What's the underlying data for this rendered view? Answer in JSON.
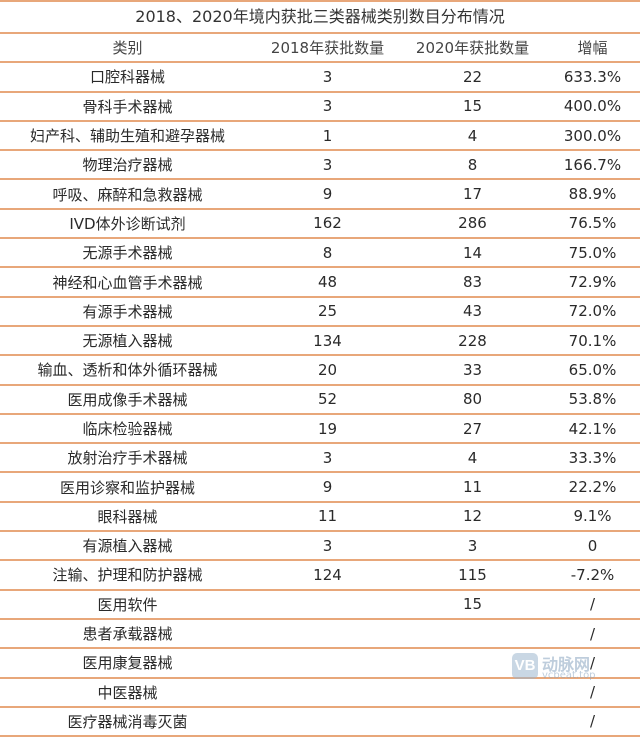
{
  "table": {
    "title": "2018、2020年境内获批三类器械类别数目分布情况",
    "headers": [
      "类别",
      "2018年获批数量",
      "2020年获批数量",
      "增幅"
    ],
    "rows": [
      [
        "口腔科器械",
        "3",
        "22",
        "633.3%"
      ],
      [
        "骨科手术器械",
        "3",
        "15",
        "400.0%"
      ],
      [
        "妇产科、辅助生殖和避孕器械",
        "1",
        "4",
        "300.0%"
      ],
      [
        "物理治疗器械",
        "3",
        "8",
        "166.7%"
      ],
      [
        "呼吸、麻醉和急救器械",
        "9",
        "17",
        "88.9%"
      ],
      [
        "IVD体外诊断试剂",
        "162",
        "286",
        "76.5%"
      ],
      [
        "无源手术器械",
        "8",
        "14",
        "75.0%"
      ],
      [
        "神经和心血管手术器械",
        "48",
        "83",
        "72.9%"
      ],
      [
        "有源手术器械",
        "25",
        "43",
        "72.0%"
      ],
      [
        "无源植入器械",
        "134",
        "228",
        "70.1%"
      ],
      [
        "输血、透析和体外循环器械",
        "20",
        "33",
        "65.0%"
      ],
      [
        "医用成像手术器械",
        "52",
        "80",
        "53.8%"
      ],
      [
        "临床检验器械",
        "19",
        "27",
        "42.1%"
      ],
      [
        "放射治疗手术器械",
        "3",
        "4",
        "33.3%"
      ],
      [
        "医用诊察和监护器械",
        "9",
        "11",
        "22.2%"
      ],
      [
        "眼科器械",
        "11",
        "12",
        "9.1%"
      ],
      [
        "有源植入器械",
        "3",
        "3",
        "0"
      ],
      [
        "注输、护理和防护器械",
        "124",
        "115",
        "-7.2%"
      ],
      [
        "医用软件",
        "",
        "15",
        "/"
      ],
      [
        "患者承载器械",
        "",
        "",
        "/"
      ],
      [
        "医用康复器械",
        "",
        "",
        "/"
      ],
      [
        "中医器械",
        "",
        "",
        "/"
      ],
      [
        "医疗器械消毒灭菌",
        "",
        "",
        "/"
      ]
    ]
  },
  "watermark": {
    "logo_text": "VB",
    "name": "动脉网",
    "site": "vcbeat.top"
  }
}
